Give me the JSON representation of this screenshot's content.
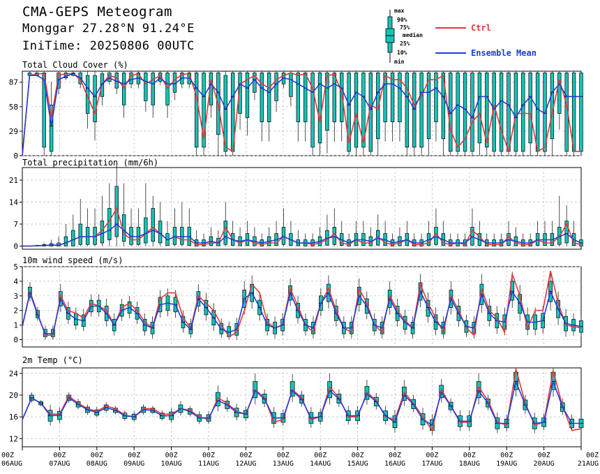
{
  "header": {
    "title": "CMA-GEPS Meteogram",
    "location": "Monggar 27.28°N 91.24°E",
    "init_time": "IniTime: 20250806 00UTC"
  },
  "legend": {
    "box_labels": {
      "max": "max",
      "p90": "90%",
      "p75": "75%",
      "median": "median",
      "p25": "25%",
      "p10": "10%",
      "min": "min"
    },
    "ctrl_label": "Ctrl",
    "mean_label": "Ensemble Mean",
    "ctrl_color": "#e0393b",
    "mean_color": "#1f3fd9",
    "box_color": "#17c2b8"
  },
  "chart_data": [
    {
      "type": "boxplot+line",
      "title": "Total Cloud Cover (%)",
      "ylim": [
        0,
        100
      ],
      "yticks": [
        0,
        29,
        58,
        87
      ],
      "ctrl": [
        0,
        95,
        97,
        97,
        45,
        95,
        97,
        97,
        90,
        70,
        50,
        85,
        95,
        92,
        80,
        95,
        97,
        85,
        90,
        95,
        80,
        90,
        96,
        97,
        70,
        20,
        90,
        60,
        10,
        5,
        85,
        90,
        95,
        85,
        80,
        90,
        95,
        98,
        95,
        97,
        80,
        40,
        95,
        96,
        75,
        15,
        50,
        15,
        60,
        55,
        95,
        90,
        90,
        80,
        60,
        70,
        90,
        90,
        95,
        30,
        10,
        20,
        40,
        50,
        15,
        60,
        30,
        5,
        50,
        50,
        50,
        5,
        10,
        50,
        90,
        60,
        5,
        5
      ],
      "mean": [
        0,
        95,
        95,
        90,
        35,
        90,
        94,
        97,
        92,
        80,
        70,
        85,
        92,
        88,
        85,
        90,
        92,
        88,
        85,
        92,
        85,
        85,
        92,
        92,
        80,
        70,
        85,
        75,
        55,
        70,
        85,
        80,
        90,
        80,
        75,
        85,
        92,
        90,
        85,
        80,
        75,
        85,
        80,
        85,
        80,
        60,
        75,
        70,
        55,
        75,
        85,
        85,
        80,
        70,
        55,
        75,
        75,
        80,
        70,
        50,
        60,
        55,
        45,
        70,
        70,
        55,
        65,
        60,
        45,
        60,
        70,
        55,
        50,
        75,
        85,
        70,
        70,
        70
      ],
      "box_lo": [
        0,
        95,
        95,
        10,
        5,
        80,
        92,
        95,
        85,
        50,
        40,
        70,
        88,
        80,
        60,
        85,
        85,
        65,
        60,
        88,
        60,
        75,
        85,
        85,
        10,
        10,
        60,
        25,
        5,
        5,
        50,
        45,
        75,
        40,
        40,
        65,
        85,
        70,
        40,
        40,
        10,
        15,
        30,
        40,
        40,
        5,
        10,
        10,
        5,
        20,
        40,
        40,
        40,
        10,
        10,
        10,
        20,
        40,
        20,
        5,
        5,
        5,
        5,
        15,
        10,
        5,
        5,
        5,
        5,
        5,
        15,
        5,
        5,
        20,
        50,
        5,
        5,
        5
      ],
      "box_hi": [
        0,
        98,
        98,
        98,
        60,
        98,
        98,
        98,
        98,
        95,
        95,
        97,
        98,
        98,
        98,
        98,
        98,
        98,
        98,
        98,
        98,
        98,
        98,
        98,
        98,
        98,
        98,
        98,
        95,
        98,
        98,
        98,
        98,
        98,
        98,
        98,
        98,
        98,
        98,
        98,
        98,
        98,
        98,
        98,
        98,
        98,
        98,
        98,
        98,
        98,
        98,
        98,
        98,
        98,
        98,
        98,
        98,
        98,
        98,
        98,
        98,
        98,
        98,
        98,
        98,
        98,
        98,
        98,
        98,
        98,
        98,
        98,
        98,
        98,
        98,
        98,
        98,
        98
      ]
    },
    {
      "type": "boxplot+line",
      "title": "Total precipitation (mm/6h)",
      "ylim": [
        -1,
        25
      ],
      "yticks": [
        0,
        7,
        14,
        21
      ],
      "ctrl": [
        0,
        0,
        0.1,
        0.2,
        0.3,
        0.2,
        1,
        2,
        3,
        3,
        3,
        5,
        8,
        12,
        4,
        2,
        2,
        4,
        6,
        4,
        2,
        3,
        2,
        2,
        0.5,
        0.5,
        1,
        1,
        6,
        2,
        1,
        2,
        1,
        0.5,
        1,
        1,
        3,
        2,
        1,
        1,
        0.5,
        1,
        2,
        4,
        1,
        0.5,
        2,
        1,
        1,
        3,
        1,
        0.5,
        1,
        2,
        0.5,
        0.5,
        1,
        4,
        1,
        0.5,
        1,
        0.5,
        5,
        3,
        0.5,
        0.5,
        0.5,
        3,
        1,
        0.5,
        0.5,
        2,
        1,
        1,
        3,
        7,
        1,
        0.5
      ],
      "mean": [
        0,
        0,
        0.1,
        0.2,
        0.3,
        0.3,
        1,
        2,
        3,
        3,
        3,
        4,
        5,
        7,
        5,
        3,
        3,
        4,
        5,
        4,
        2,
        3,
        3,
        3,
        1,
        1,
        1.5,
        1,
        3,
        2,
        1.5,
        2,
        1.5,
        1,
        1.5,
        2,
        3,
        2,
        1,
        1,
        1,
        1.5,
        2.5,
        3,
        2,
        1,
        2,
        2,
        1.5,
        2.5,
        2,
        1,
        1.5,
        2,
        1,
        1,
        2,
        3,
        2,
        1,
        1,
        1,
        3,
        2,
        1,
        1,
        1,
        2,
        1.5,
        1,
        1,
        2,
        2,
        2,
        3,
        4,
        2,
        1
      ],
      "box_lo": [
        0,
        0,
        0,
        0,
        0,
        0,
        0,
        0,
        0.5,
        0.5,
        0.5,
        1,
        2,
        3,
        1.5,
        0.5,
        0.5,
        1,
        1.5,
        1,
        0.2,
        0.5,
        0.5,
        0.2,
        0,
        0,
        0.2,
        0.1,
        0.5,
        0.2,
        0.1,
        0.2,
        0.1,
        0,
        0.1,
        0.2,
        0.5,
        0.2,
        0.1,
        0,
        0,
        0.1,
        0.3,
        0.5,
        0.2,
        0,
        0.2,
        0.2,
        0.1,
        0.3,
        0.2,
        0,
        0.1,
        0.2,
        0,
        0,
        0.2,
        0.5,
        0.2,
        0,
        0,
        0,
        0.3,
        0.2,
        0,
        0,
        0,
        0.2,
        0.1,
        0,
        0,
        0.2,
        0.2,
        0.2,
        0.5,
        1,
        0.2,
        0
      ],
      "box_hi": [
        0,
        0,
        0.2,
        0.5,
        0.8,
        1,
        3,
        5,
        7,
        6,
        6,
        8,
        12,
        19,
        10,
        6,
        6,
        9,
        12,
        8,
        4,
        6,
        6,
        6,
        2,
        2,
        3,
        2.5,
        8,
        4,
        3,
        4,
        3,
        2,
        3,
        4,
        6,
        4,
        2,
        2,
        2,
        3,
        5,
        6,
        4,
        2,
        4,
        4,
        3,
        5,
        4,
        2,
        3,
        4,
        2,
        2,
        4,
        6,
        4,
        2,
        2,
        2,
        6,
        4,
        2,
        2,
        2,
        4,
        3,
        2,
        2,
        4,
        4,
        4,
        6,
        8,
        4,
        2
      ],
      "whisk_hi": [
        0,
        0.2,
        0.5,
        1,
        2,
        3,
        7,
        10,
        15,
        12,
        12,
        16,
        20,
        26,
        20,
        12,
        12,
        20,
        16,
        14,
        8,
        12,
        14,
        12,
        5,
        4,
        6,
        5,
        14,
        8,
        6,
        8,
        6,
        4,
        6,
        8,
        12,
        8,
        5,
        4,
        4,
        6,
        10,
        12,
        8,
        4,
        8,
        8,
        6,
        10,
        8,
        4,
        6,
        8,
        4,
        4,
        8,
        12,
        8,
        4,
        4,
        4,
        12,
        8,
        4,
        4,
        4,
        8,
        6,
        4,
        4,
        8,
        8,
        8,
        16,
        13,
        8,
        4
      ]
    },
    {
      "type": "boxplot+line",
      "title": "10m wind speed (m/s)",
      "ylim": [
        -0.5,
        5
      ],
      "yticks": [
        0,
        1,
        2,
        3,
        4,
        5
      ],
      "ctrl": [
        0.9,
        3.3,
        1.8,
        0.3,
        0.3,
        3.0,
        2.0,
        1.8,
        1.5,
        2.5,
        2.3,
        2.0,
        1.0,
        2.2,
        2.5,
        2.0,
        1.2,
        0.8,
        2.8,
        3.2,
        3.2,
        1.5,
        0.8,
        3.0,
        2.5,
        2.0,
        1.0,
        0.2,
        0.5,
        2.0,
        3.8,
        3.2,
        1.2,
        0.8,
        1.0,
        3.5,
        2.3,
        1.0,
        0.5,
        2.5,
        3.5,
        2.0,
        0.8,
        0.5,
        3.5,
        2.5,
        1.0,
        0.5,
        3.0,
        2.0,
        1.3,
        0.8,
        3.8,
        2.5,
        1.5,
        0.5,
        3.0,
        2.0,
        0.8,
        0.3,
        3.5,
        2.0,
        1.5,
        0.5,
        4.5,
        3.0,
        0.8,
        2.0,
        2.0,
        4.7,
        2.5,
        1.0,
        0.9,
        0.8
      ],
      "mean": [
        0.9,
        3.2,
        1.7,
        0.4,
        0.4,
        2.8,
        1.8,
        1.4,
        1.3,
        2.3,
        2.3,
        1.8,
        1.0,
        2.0,
        2.2,
        1.8,
        1.0,
        0.8,
        2.4,
        2.5,
        2.4,
        1.2,
        0.7,
        2.8,
        2.2,
        1.5,
        0.7,
        0.5,
        0.7,
        2.8,
        3.2,
        2.2,
        1.0,
        0.8,
        1.0,
        3.2,
        2.0,
        1.0,
        0.8,
        2.5,
        3.2,
        1.8,
        0.8,
        0.8,
        3.0,
        2.3,
        1.0,
        0.8,
        2.8,
        1.8,
        1.2,
        0.8,
        3.3,
        2.2,
        1.2,
        0.8,
        2.8,
        1.8,
        0.9,
        0.8,
        3.1,
        1.8,
        1.3,
        1.2,
        3.3,
        2.5,
        1.2,
        1.2,
        1.3,
        3.3,
        2.1,
        1.1,
        1.0,
        0.9
      ],
      "box_lo": [
        0.9,
        2.9,
        1.5,
        0.2,
        0.2,
        2.3,
        1.4,
        1.0,
        0.9,
        1.9,
        1.9,
        1.3,
        0.6,
        1.6,
        1.8,
        1.4,
        0.6,
        0.4,
        1.9,
        2.0,
        1.9,
        0.8,
        0.4,
        2.3,
        1.7,
        1.0,
        0.4,
        0.2,
        0.3,
        2.2,
        2.6,
        1.7,
        0.6,
        0.4,
        0.6,
        2.7,
        1.5,
        0.6,
        0.4,
        2.0,
        2.6,
        1.3,
        0.4,
        0.4,
        2.4,
        1.8,
        0.6,
        0.4,
        2.2,
        1.3,
        0.7,
        0.4,
        2.7,
        1.6,
        0.7,
        0.4,
        2.2,
        1.3,
        0.5,
        0.4,
        2.4,
        1.3,
        0.8,
        0.7,
        2.7,
        1.8,
        0.7,
        0.7,
        0.8,
        2.6,
        1.5,
        0.6,
        0.6,
        0.5
      ],
      "box_hi": [
        0.9,
        3.6,
        2.0,
        0.7,
        0.7,
        3.3,
        2.2,
        1.8,
        1.7,
        2.7,
        2.7,
        2.3,
        1.4,
        2.4,
        2.6,
        2.2,
        1.4,
        1.2,
        2.9,
        3.0,
        2.9,
        1.6,
        1.1,
        3.3,
        2.7,
        2.0,
        1.1,
        0.9,
        1.1,
        3.4,
        3.8,
        2.7,
        1.4,
        1.2,
        1.4,
        3.7,
        2.5,
        1.4,
        1.2,
        3.0,
        3.8,
        2.3,
        1.2,
        1.2,
        3.6,
        2.8,
        1.4,
        1.2,
        3.4,
        2.3,
        1.6,
        1.2,
        3.9,
        2.7,
        1.7,
        1.2,
        3.4,
        2.3,
        1.3,
        1.2,
        3.8,
        2.3,
        1.8,
        1.7,
        4.0,
        3.1,
        1.7,
        1.7,
        1.8,
        4.0,
        2.7,
        1.6,
        1.4,
        1.3
      ]
    },
    {
      "type": "boxplot+line",
      "title": "2m Temp (°C)",
      "ylim": [
        10.5,
        25
      ],
      "yticks": [
        12,
        16,
        20,
        24
      ],
      "ctrl": [
        15.5,
        19.5,
        18.5,
        16.5,
        16.5,
        19.8,
        18.5,
        17.5,
        17,
        18,
        17.5,
        16.3,
        16,
        17.5,
        17.5,
        16.5,
        16.5,
        17.5,
        17.2,
        16,
        15.5,
        19.5,
        18.5,
        17,
        16.5,
        21,
        19.5,
        15,
        15.5,
        21,
        19.5,
        15.5,
        16,
        21.5,
        19.5,
        16,
        16,
        20.5,
        19,
        16,
        15.5,
        20.5,
        18.5,
        16,
        13.5,
        21,
        18,
        15,
        15,
        21.5,
        19,
        15,
        14.5,
        24.8,
        18.5,
        14.5,
        15,
        24.5,
        18,
        13.5,
        13.8
      ],
      "mean": [
        15.5,
        19.5,
        18.5,
        16.2,
        16.3,
        19.5,
        18.3,
        17.3,
        16.8,
        17.7,
        17.2,
        16.2,
        16,
        17.3,
        17.2,
        16.2,
        16.2,
        17.5,
        17.0,
        15.8,
        15.8,
        19,
        18.2,
        16.8,
        16.5,
        20.8,
        19.3,
        15.8,
        15.8,
        20.8,
        19.2,
        15.8,
        16,
        20.8,
        19.3,
        16.2,
        16.2,
        20.2,
        18.8,
        16.2,
        15,
        20,
        18.3,
        15.5,
        14.5,
        20.5,
        18,
        15.2,
        15.2,
        20.8,
        18.5,
        14.8,
        14.8,
        22.5,
        18.2,
        14.8,
        15,
        22.5,
        17.8,
        14.8,
        14.8
      ],
      "box_lo": [
        15.5,
        19,
        18.2,
        15.2,
        15.5,
        19,
        17.8,
        16.8,
        16.3,
        17.2,
        16.8,
        15.7,
        15.5,
        16.8,
        16.8,
        15.7,
        15.5,
        16.8,
        16.5,
        15.2,
        15.2,
        18,
        17.5,
        16,
        15.8,
        19.5,
        18.5,
        14.8,
        15,
        19.8,
        18.5,
        14.8,
        15.2,
        19.5,
        18.5,
        15.3,
        15.3,
        19.2,
        18,
        15.3,
        14,
        19,
        17.5,
        14.5,
        13.5,
        19.5,
        17.3,
        14.2,
        14.2,
        19.5,
        17.8,
        13.8,
        14,
        21,
        17.3,
        13.8,
        14.2,
        21,
        17,
        14,
        14
      ],
      "box_hi": [
        15.5,
        20,
        18.8,
        17.2,
        17,
        20,
        18.8,
        17.8,
        17.3,
        18.2,
        17.6,
        16.7,
        16.5,
        17.8,
        17.6,
        16.7,
        16.9,
        18.2,
        17.5,
        16.4,
        16.4,
        20.5,
        18.9,
        17.6,
        17.2,
        22.5,
        20.2,
        16.8,
        16.6,
        22.5,
        20,
        16.8,
        16.8,
        22.5,
        20.2,
        17.1,
        17.1,
        21.6,
        19.6,
        17.1,
        16.2,
        21.5,
        19.2,
        16.6,
        15.5,
        21.8,
        18.7,
        16.2,
        16.2,
        22.5,
        19.3,
        15.8,
        15.6,
        24.2,
        19.1,
        15.8,
        15.8,
        24.2,
        18.6,
        15.6,
        15.6
      ]
    }
  ],
  "x_axis": {
    "labels_top": [
      "00Z",
      "00Z",
      "00Z",
      "00Z",
      "00Z",
      "00Z",
      "00Z",
      "00Z",
      "00Z",
      "00Z",
      "00Z",
      "00Z",
      "00Z",
      "00Z",
      "00Z",
      "00Z"
    ],
    "labels_bottom": [
      "06AUG",
      "07AUG",
      "08AUG",
      "09AUG",
      "10AUG",
      "11AUG",
      "12AUG",
      "13AUG",
      "14AUG",
      "15AUG",
      "16AUG",
      "17AUG",
      "18AUG",
      "19AUG",
      "20AUG",
      "21AUG"
    ]
  }
}
